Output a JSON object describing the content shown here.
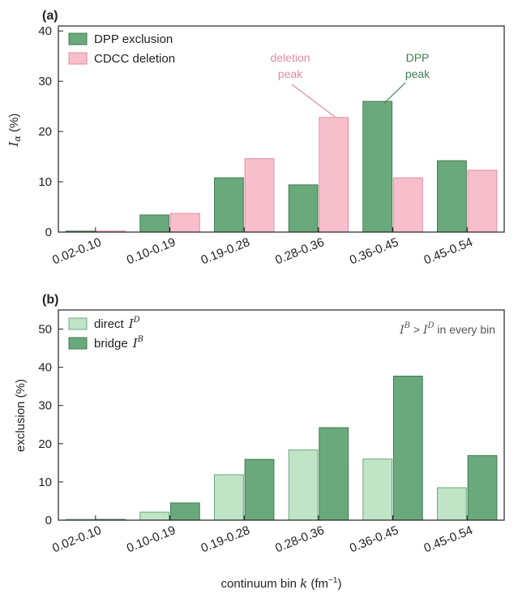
{
  "colors": {
    "dpp": "#6aa97b",
    "dpp_edge": "#3f7d52",
    "cdcc": "#f7bfcc",
    "cdcc_edge": "#e58aa2",
    "direct": "#bfe4c6",
    "direct_edge": "#6aa97b",
    "pink_text": "#e58aa2",
    "green_text": "#3f7d52"
  },
  "chart_data": [
    {
      "type": "bar",
      "panel_label": "(a)",
      "categories": [
        "0.02-0.10",
        "0.10-0.19",
        "0.19-0.28",
        "0.28-0.36",
        "0.36-0.45",
        "0.45-0.54"
      ],
      "series": [
        {
          "name": "DPP exclusion",
          "values": [
            0.2,
            3.4,
            10.8,
            9.4,
            26.0,
            14.2
          ]
        },
        {
          "name": "CDCC deletion",
          "values": [
            0.2,
            3.7,
            14.6,
            22.8,
            10.8,
            12.3
          ]
        }
      ],
      "ylabel_main": "I",
      "ylabel_sub": "α",
      "ylabel_rest": " (%)",
      "ylim": [
        0,
        41
      ],
      "yticks": [
        0,
        10,
        20,
        30,
        40
      ],
      "legend": "top-left",
      "annotations": [
        {
          "line1": "deletion",
          "line2": "peak"
        },
        {
          "line1": "DPP",
          "line2": "peak"
        }
      ]
    },
    {
      "type": "bar",
      "panel_label": "(b)",
      "categories": [
        "0.02-0.10",
        "0.10-0.19",
        "0.19-0.28",
        "0.28-0.36",
        "0.36-0.45",
        "0.45-0.54"
      ],
      "series": [
        {
          "name": "direct",
          "symbol": "I",
          "superscript": "D",
          "values": [
            0.2,
            2.1,
            11.9,
            18.4,
            16.0,
            8.5
          ]
        },
        {
          "name": "bridge",
          "symbol": "I",
          "superscript": "B",
          "values": [
            0.2,
            4.5,
            15.9,
            24.2,
            37.7,
            16.9
          ]
        }
      ],
      "ylabel": "exclusion (%)",
      "ylim": [
        0,
        55
      ],
      "yticks": [
        0,
        10,
        20,
        30,
        40,
        50
      ],
      "legend": "top-left",
      "note": {
        "sym1": "I",
        "sup1": "B",
        "op": " > ",
        "sym2": "I",
        "sup2": "D",
        "tail": " in every bin"
      },
      "xlabel_pre": "continuum bin ",
      "xlabel_var": "k",
      "xlabel_unit": " (fm",
      "xlabel_exp": "−1",
      "xlabel_close": ")"
    }
  ]
}
